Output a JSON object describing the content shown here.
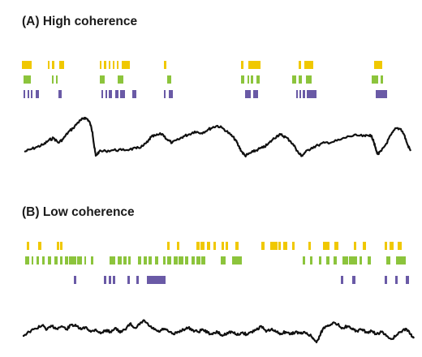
{
  "panels": [
    {
      "id": "high",
      "title": "(A)  High coherence",
      "rows": [
        {
          "color": "#f0c800",
          "spikes": [
            [
              27,
              39
            ],
            [
              59,
              61
            ],
            [
              64,
              67
            ],
            [
              73,
              79
            ],
            [
              123,
              125
            ],
            [
              128,
              131
            ],
            [
              134,
              136
            ],
            [
              139,
              141
            ],
            [
              144,
              146
            ],
            [
              150,
              160
            ],
            [
              202,
              205
            ],
            [
              297,
              300
            ],
            [
              306,
              321
            ],
            [
              368,
              371
            ],
            [
              375,
              386
            ],
            [
              461,
              471
            ]
          ]
        },
        {
          "color": "#8cc43c",
          "spikes": [
            [
              29,
              38
            ],
            [
              64,
              66
            ],
            [
              69,
              71
            ],
            [
              123,
              129
            ],
            [
              145,
              152
            ],
            [
              206,
              211
            ],
            [
              297,
              301
            ],
            [
              305,
              307
            ],
            [
              309,
              312
            ],
            [
              316,
              320
            ],
            [
              360,
              365
            ],
            [
              368,
              372
            ],
            [
              377,
              384
            ],
            [
              458,
              466
            ],
            [
              469,
              472
            ]
          ]
        },
        {
          "color": "#6a5aa6",
          "spikes": [
            [
              29,
              31
            ],
            [
              34,
              36
            ],
            [
              38,
              40
            ],
            [
              44,
              48
            ],
            [
              72,
              76
            ],
            [
              125,
              127
            ],
            [
              130,
              132
            ],
            [
              134,
              138
            ],
            [
              142,
              146
            ],
            [
              148,
              154
            ],
            [
              163,
              168
            ],
            [
              202,
              204
            ],
            [
              208,
              213
            ],
            [
              302,
              309
            ],
            [
              312,
              318
            ],
            [
              365,
              367
            ],
            [
              369,
              371
            ],
            [
              373,
              376
            ],
            [
              378,
              390
            ],
            [
              463,
              477
            ]
          ]
        }
      ],
      "trace": [
        [
          30,
          187
        ],
        [
          38,
          184
        ],
        [
          46,
          181
        ],
        [
          54,
          178
        ],
        [
          60,
          173
        ],
        [
          66,
          170
        ],
        [
          72,
          176
        ],
        [
          78,
          171
        ],
        [
          84,
          163
        ],
        [
          90,
          158
        ],
        [
          96,
          151
        ],
        [
          100,
          148
        ],
        [
          104,
          145
        ],
        [
          108,
          147
        ],
        [
          111,
          152
        ],
        [
          114,
          163
        ],
        [
          116,
          180
        ],
        [
          118,
          192
        ],
        [
          122,
          187
        ],
        [
          130,
          186
        ],
        [
          140,
          185
        ],
        [
          150,
          185
        ],
        [
          160,
          184
        ],
        [
          168,
          183
        ],
        [
          176,
          180
        ],
        [
          182,
          175
        ],
        [
          186,
          169
        ],
        [
          192,
          167
        ],
        [
          200,
          165
        ],
        [
          206,
          172
        ],
        [
          212,
          176
        ],
        [
          220,
          172
        ],
        [
          226,
          168
        ],
        [
          232,
          166
        ],
        [
          240,
          162
        ],
        [
          248,
          164
        ],
        [
          256,
          160
        ],
        [
          262,
          157
        ],
        [
          268,
          155
        ],
        [
          276,
          159
        ],
        [
          284,
          166
        ],
        [
          290,
          172
        ],
        [
          294,
          180
        ],
        [
          298,
          187
        ],
        [
          302,
          192
        ],
        [
          306,
          190
        ],
        [
          312,
          187
        ],
        [
          318,
          184
        ],
        [
          324,
          182
        ],
        [
          330,
          178
        ],
        [
          336,
          172
        ],
        [
          342,
          167
        ],
        [
          346,
          166
        ],
        [
          352,
          169
        ],
        [
          358,
          174
        ],
        [
          364,
          182
        ],
        [
          368,
          189
        ],
        [
          372,
          192
        ],
        [
          376,
          188
        ],
        [
          384,
          182
        ],
        [
          392,
          179
        ],
        [
          400,
          176
        ],
        [
          410,
          175
        ],
        [
          420,
          172
        ],
        [
          430,
          168
        ],
        [
          440,
          167
        ],
        [
          450,
          168
        ],
        [
          456,
          166
        ],
        [
          460,
          172
        ],
        [
          462,
          180
        ],
        [
          464,
          187
        ],
        [
          466,
          190
        ],
        [
          470,
          186
        ],
        [
          476,
          177
        ],
        [
          482,
          166
        ],
        [
          488,
          158
        ],
        [
          494,
          159
        ],
        [
          498,
          166
        ],
        [
          502,
          178
        ],
        [
          506,
          186
        ]
      ]
    },
    {
      "id": "low",
      "title": "(B)  Low coherence",
      "rows": [
        {
          "color": "#f0c800",
          "spikes": [
            [
              33,
              36
            ],
            [
              47,
              51
            ],
            [
              70,
              73
            ],
            [
              74,
              77
            ],
            [
              206,
              209
            ],
            [
              218,
              221
            ],
            [
              242,
              246
            ],
            [
              247,
              252
            ],
            [
              255,
              259
            ],
            [
              263,
              266
            ],
            [
              273,
              276
            ],
            [
              278,
              281
            ],
            [
              290,
              294
            ],
            [
              322,
              326
            ],
            [
              333,
              342
            ],
            [
              343,
              346
            ],
            [
              349,
              354
            ],
            [
              360,
              363
            ],
            [
              380,
              383
            ],
            [
              398,
              406
            ],
            [
              412,
              417
            ],
            [
              436,
              439
            ],
            [
              447,
              451
            ],
            [
              474,
              477
            ],
            [
              480,
              485
            ],
            [
              490,
              495
            ]
          ]
        },
        {
          "color": "#8cc43c",
          "spikes": [
            [
              31,
              36
            ],
            [
              39,
              41
            ],
            [
              45,
              48
            ],
            [
              52,
              55
            ],
            [
              59,
              63
            ],
            [
              67,
              71
            ],
            [
              74,
              77
            ],
            [
              80,
              84
            ],
            [
              85,
              94
            ],
            [
              95,
              101
            ],
            [
              104,
              106
            ],
            [
              112,
              115
            ],
            [
              135,
              142
            ],
            [
              145,
              150
            ],
            [
              152,
              156
            ],
            [
              158,
              161
            ],
            [
              170,
              174
            ],
            [
              177,
              181
            ],
            [
              183,
              187
            ],
            [
              191,
              195
            ],
            [
              201,
              204
            ],
            [
              206,
              211
            ],
            [
              214,
              219
            ],
            [
              220,
              226
            ],
            [
              228,
              232
            ],
            [
              236,
              240
            ],
            [
              242,
              247
            ],
            [
              248,
              253
            ],
            [
              272,
              278
            ],
            [
              286,
              298
            ],
            [
              373,
              376
            ],
            [
              382,
              385
            ],
            [
              393,
              396
            ],
            [
              402,
              406
            ],
            [
              411,
              415
            ],
            [
              422,
              429
            ],
            [
              430,
              440
            ],
            [
              443,
              446
            ],
            [
              453,
              457
            ],
            [
              476,
              481
            ],
            [
              488,
              500
            ]
          ]
        },
        {
          "color": "#6a5aa6",
          "spikes": [
            [
              91,
              94
            ],
            [
              128,
              131
            ],
            [
              134,
              137
            ],
            [
              139,
              142
            ],
            [
              157,
              160
            ],
            [
              168,
              171
            ],
            [
              181,
              204
            ],
            [
              420,
              423
            ],
            [
              434,
              438
            ],
            [
              474,
              477
            ],
            [
              487,
              490
            ],
            [
              500,
              504
            ]
          ]
        }
      ],
      "trace": [
        [
          28,
          414
        ],
        [
          36,
          409
        ],
        [
          44,
          405
        ],
        [
          52,
          401
        ],
        [
          58,
          406
        ],
        [
          64,
          402
        ],
        [
          70,
          405
        ],
        [
          76,
          402
        ],
        [
          82,
          406
        ],
        [
          88,
          400
        ],
        [
          94,
          402
        ],
        [
          100,
          406
        ],
        [
          106,
          403
        ],
        [
          112,
          409
        ],
        [
          118,
          406
        ],
        [
          124,
          411
        ],
        [
          130,
          407
        ],
        [
          136,
          409
        ],
        [
          142,
          404
        ],
        [
          148,
          410
        ],
        [
          154,
          406
        ],
        [
          160,
          399
        ],
        [
          166,
          404
        ],
        [
          172,
          400
        ],
        [
          178,
          395
        ],
        [
          184,
          402
        ],
        [
          190,
          406
        ],
        [
          196,
          409
        ],
        [
          202,
          405
        ],
        [
          208,
          409
        ],
        [
          214,
          412
        ],
        [
          220,
          409
        ],
        [
          226,
          406
        ],
        [
          232,
          404
        ],
        [
          238,
          407
        ],
        [
          244,
          409
        ],
        [
          250,
          406
        ],
        [
          256,
          410
        ],
        [
          262,
          412
        ],
        [
          268,
          409
        ],
        [
          274,
          414
        ],
        [
          280,
          410
        ],
        [
          286,
          409
        ],
        [
          292,
          413
        ],
        [
          298,
          410
        ],
        [
          304,
          412
        ],
        [
          310,
          409
        ],
        [
          316,
          406
        ],
        [
          322,
          402
        ],
        [
          328,
          409
        ],
        [
          334,
          406
        ],
        [
          340,
          409
        ],
        [
          346,
          411
        ],
        [
          352,
          409
        ],
        [
          358,
          412
        ],
        [
          364,
          409
        ],
        [
          370,
          411
        ],
        [
          376,
          410
        ],
        [
          382,
          413
        ],
        [
          386,
          417
        ],
        [
          390,
          422
        ],
        [
          394,
          414
        ],
        [
          398,
          405
        ],
        [
          404,
          401
        ],
        [
          410,
          398
        ],
        [
          416,
          400
        ],
        [
          422,
          404
        ],
        [
          428,
          402
        ],
        [
          434,
          406
        ],
        [
          440,
          408
        ],
        [
          446,
          406
        ],
        [
          452,
          410
        ],
        [
          458,
          408
        ],
        [
          464,
          412
        ],
        [
          470,
          409
        ],
        [
          476,
          414
        ],
        [
          482,
          418
        ],
        [
          488,
          414
        ],
        [
          494,
          409
        ],
        [
          500,
          405
        ],
        [
          506,
          412
        ],
        [
          510,
          417
        ]
      ]
    }
  ]
}
